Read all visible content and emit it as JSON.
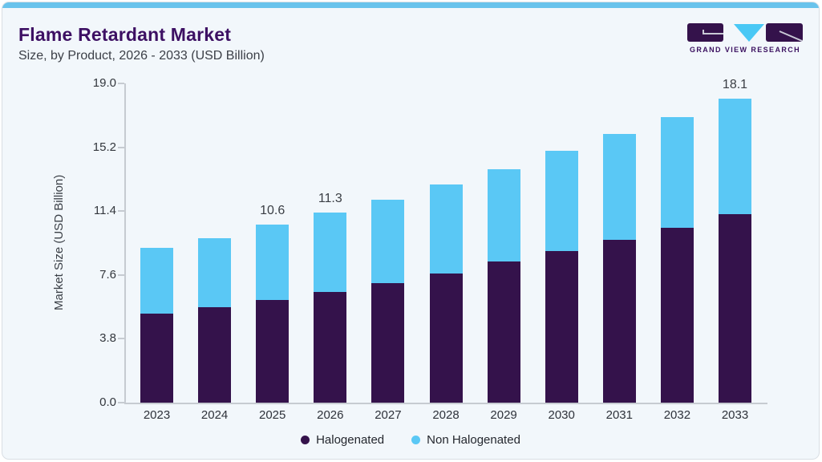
{
  "header": {
    "title": "Flame Retardant Market",
    "subtitle": "Size, by Product, 2026 - 2033 (USD Billion)"
  },
  "logo": {
    "brand": "GRAND VIEW RESEARCH"
  },
  "chart_data": {
    "type": "bar",
    "stacked": true,
    "title": "Flame Retardant Market Size, by Product, 2026 - 2033 (USD Billion)",
    "ylabel": "Market Size (USD Billion)",
    "xlabel": "",
    "ylim": [
      0,
      19.0
    ],
    "yticks": [
      0.0,
      3.8,
      7.6,
      11.4,
      15.2,
      19.0
    ],
    "ytick_labels": [
      "0.0",
      "3.8",
      "7.6",
      "11.4",
      "15.2",
      "19.0"
    ],
    "grid": false,
    "legend_position": "bottom",
    "categories": [
      "2023",
      "2024",
      "2025",
      "2026",
      "2027",
      "2028",
      "2029",
      "2030",
      "2031",
      "2032",
      "2033"
    ],
    "series": [
      {
        "name": "Halogenated",
        "color": "#34124B",
        "values": [
          5.3,
          5.7,
          6.1,
          6.6,
          7.1,
          7.7,
          8.4,
          9.0,
          9.7,
          10.4,
          11.2
        ]
      },
      {
        "name": "Non Halogenated",
        "color": "#5AC8F5",
        "values": [
          3.9,
          4.1,
          4.5,
          4.7,
          5.0,
          5.3,
          5.5,
          6.0,
          6.3,
          6.6,
          6.9
        ]
      }
    ],
    "totals": [
      9.2,
      9.8,
      10.6,
      11.3,
      12.1,
      13.0,
      13.9,
      15.0,
      16.0,
      17.0,
      18.1
    ],
    "bar_labels": [
      null,
      null,
      "10.6",
      "11.3",
      null,
      null,
      null,
      null,
      null,
      null,
      "18.1"
    ]
  },
  "colors": {
    "top_accent_bar": "#69C3EC",
    "card_background": "#F2F7FB",
    "title_text": "#3D1063",
    "axis_line": "#C6CBD1",
    "halogenated": "#34124B",
    "non_halogenated": "#5AC8F5",
    "logo_triangle": "#49C8F5"
  }
}
